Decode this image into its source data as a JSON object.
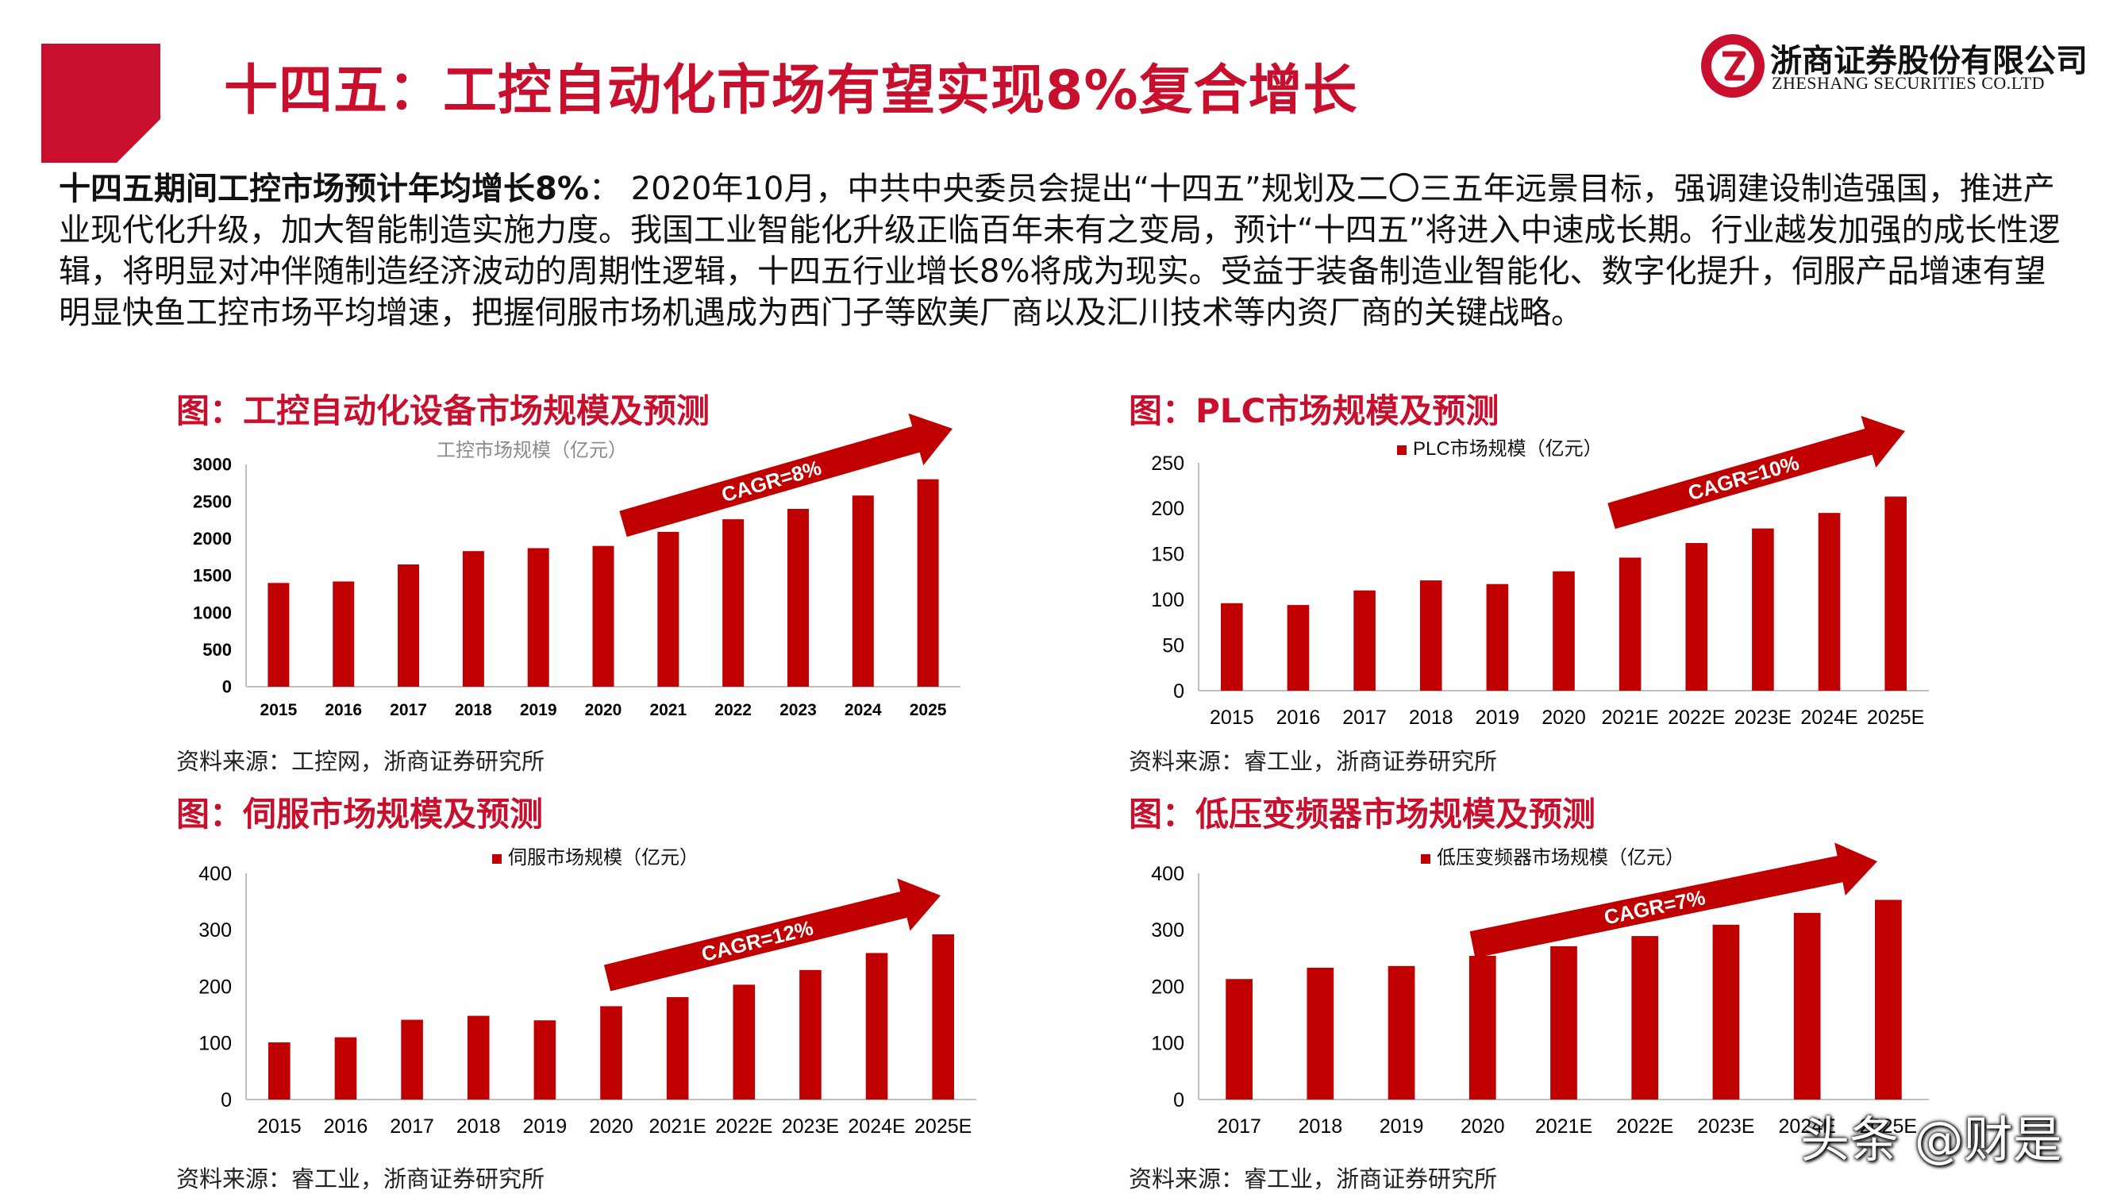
{
  "header": {
    "title": "十四五：工控自动化市场有望实现8%复合增长",
    "logo_cn": "浙商证券股份有限公司",
    "logo_en": "ZHESHANG SECURITIES CO.LTD",
    "brand_color": "#c8102e"
  },
  "lead": {
    "bold": "十四五期间工控市场预计年均增长8%",
    "text": "：  2020年10月，中共中央委员会提出“十四五”规划及二〇三五年远景目标，强调建设制造强国，推进产业现代化升级，加大智能制造实施力度。我国工业智能化升级正临百年未有之变局，预计“十四五”将进入中速成长期。行业越发加强的成长性逻辑，将明显对冲伴随制造经济波动的周期性逻辑，十四五行业增长8%将成为现实。受益于装备制造业智能化、数字化提升，伺服产品增速有望明显快鱼工控市场平均增速，把握伺服市场机遇成为西门子等欧美厂商以及汇川技术等内资厂商的关键战略。"
  },
  "charts": {
    "c1": {
      "heading": "图：工控自动化设备市场规模及预测",
      "source": "资料来源：工控网，浙商证券研究所"
    },
    "c2": {
      "heading": "图：PLC市场规模及预测",
      "source": "资料来源：睿工业，浙商证券研究所"
    },
    "c3": {
      "heading": "图：伺服市场规模及预测",
      "source": "资料来源：睿工业，浙商证券研究所"
    },
    "c4": {
      "heading": "图：低压变频器市场规模及预测",
      "source": "资料来源：睿工业，浙商证券研究所"
    }
  },
  "watermark": "头条 @财是",
  "chart_data": [
    {
      "type": "bar",
      "title": "工控市场规模（亿元）",
      "categories": [
        "2015",
        "2016",
        "2017",
        "2018",
        "2019",
        "2020",
        "2021",
        "2022",
        "2023",
        "2024",
        "2025"
      ],
      "values": [
        1400,
        1420,
        1650,
        1830,
        1870,
        1900,
        2090,
        2260,
        2400,
        2580,
        2800
      ],
      "ylim": [
        0,
        3000
      ],
      "yticks": [
        0,
        500,
        1000,
        1500,
        2000,
        2500,
        3000
      ],
      "annotation": "CAGR=8%",
      "bar_color": "#c00000",
      "legend": "none",
      "grid": false
    },
    {
      "type": "bar",
      "title": "",
      "series": [
        {
          "name": "PLC市场规模（亿元）"
        }
      ],
      "categories": [
        "2015",
        "2016",
        "2017",
        "2018",
        "2019",
        "2020",
        "2021E",
        "2022E",
        "2023E",
        "2024E",
        "2025E"
      ],
      "values": [
        96,
        94,
        110,
        121,
        117,
        131,
        146,
        162,
        178,
        195,
        213
      ],
      "ylim": [
        0,
        250
      ],
      "yticks": [
        0,
        50,
        100,
        150,
        200,
        250
      ],
      "annotation": "CAGR=10%",
      "bar_color": "#c00000",
      "legend": "top",
      "grid": false
    },
    {
      "type": "bar",
      "title": "",
      "series": [
        {
          "name": "伺服市场规模（亿元）"
        }
      ],
      "categories": [
        "2015",
        "2016",
        "2017",
        "2018",
        "2019",
        "2020",
        "2021E",
        "2022E",
        "2023E",
        "2024E",
        "2025E"
      ],
      "values": [
        101,
        110,
        141,
        148,
        140,
        165,
        181,
        203,
        229,
        259,
        292
      ],
      "ylim": [
        0,
        400
      ],
      "yticks": [
        0,
        100,
        200,
        300,
        400
      ],
      "annotation": "CAGR=12%",
      "bar_color": "#c00000",
      "legend": "top",
      "grid": false
    },
    {
      "type": "bar",
      "title": "",
      "series": [
        {
          "name": "低压变频器市场规模（亿元）"
        }
      ],
      "categories": [
        "2017",
        "2018",
        "2019",
        "2020",
        "2021E",
        "2022E",
        "2023E",
        "2024E",
        "2025E"
      ],
      "values": [
        213,
        233,
        236,
        254,
        271,
        289,
        309,
        330,
        353
      ],
      "ylim": [
        0,
        400
      ],
      "yticks": [
        0,
        100,
        200,
        300,
        400
      ],
      "annotation": "CAGR=7%",
      "bar_color": "#c00000",
      "legend": "top",
      "grid": false
    }
  ]
}
